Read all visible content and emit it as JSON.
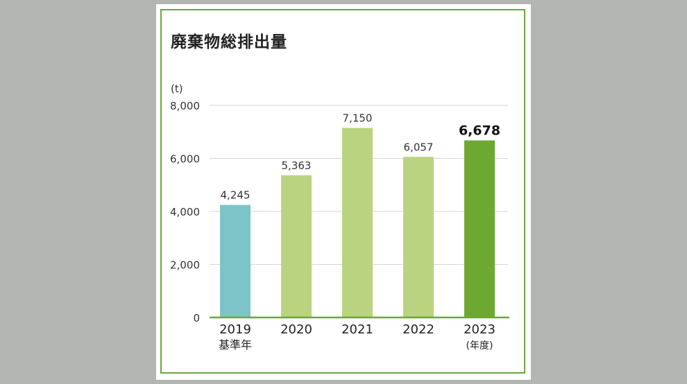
{
  "title": "廃棄物総排出量",
  "chart_data": {
    "type": "bar",
    "title": "廃棄物総排出量",
    "ylabel": "(t)",
    "ylim": [
      0,
      8000
    ],
    "yticks": [
      "0",
      "2,000",
      "4,000",
      "6,000",
      "8,000"
    ],
    "categories": [
      "2019",
      "2020",
      "2021",
      "2022",
      "2023"
    ],
    "category_sublabels": [
      "基準年",
      "",
      "",
      "",
      "(年度)"
    ],
    "values": [
      4245,
      5363,
      7150,
      6057,
      6678
    ],
    "value_labels": [
      "4,245",
      "5,363",
      "7,150",
      "6,057",
      "6,678"
    ],
    "highlight_index": 4,
    "colors": {
      "base_year": "#7cc4c8",
      "normal": "#bad381",
      "current": "#6da832",
      "axis": "#6aa63a",
      "grid": "#d6d6d6",
      "frame": "#6aa63a"
    },
    "grid": true,
    "legend": "none"
  }
}
